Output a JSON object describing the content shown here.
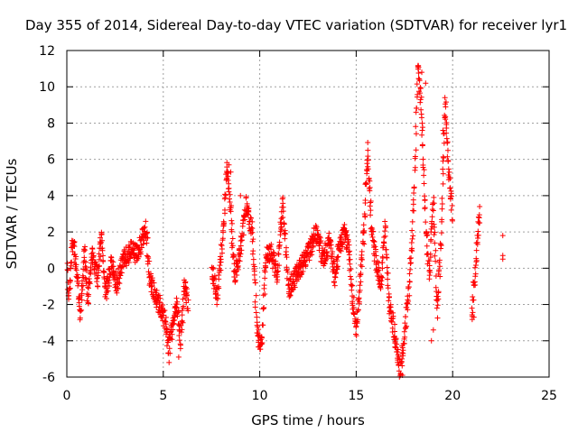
{
  "chart_data": {
    "type": "scatter",
    "title": "Day 355 of 2014, Sidereal Day-to-day VTEC variation (SDTVAR) for receiver lyr1",
    "xlabel": "GPS time / hours",
    "ylabel": "SDTVAR / TECUs",
    "xlim": [
      0,
      25
    ],
    "ylim": [
      -6,
      12
    ],
    "x_ticks": [
      "0",
      "5",
      "10",
      "15",
      "20",
      "25"
    ],
    "y_ticks": [
      "-6",
      "-4",
      "-2",
      "0",
      "2",
      "4",
      "6",
      "8",
      "10",
      "12"
    ],
    "grid": true,
    "marker": "+",
    "color": "#ff0000",
    "anchors": [
      [
        0.0,
        0.5
      ],
      [
        0.1,
        -1.5
      ],
      [
        0.3,
        1.6
      ],
      [
        0.5,
        0.0
      ],
      [
        0.7,
        -2.5
      ],
      [
        0.9,
        1.0
      ],
      [
        1.1,
        -1.8
      ],
      [
        1.3,
        0.8
      ],
      [
        1.6,
        -0.5
      ],
      [
        1.8,
        1.8
      ],
      [
        2.0,
        -1.5
      ],
      [
        2.3,
        0.2
      ],
      [
        2.6,
        -1.0
      ],
      [
        2.8,
        0.2
      ],
      [
        3.0,
        0.5
      ],
      [
        3.3,
        1.0
      ],
      [
        3.6,
        0.8
      ],
      [
        3.9,
        1.5
      ],
      [
        4.1,
        2.2
      ],
      [
        4.3,
        -0.5
      ],
      [
        4.6,
        -1.5
      ],
      [
        4.9,
        -2.3
      ],
      [
        5.1,
        -3.0
      ],
      [
        5.3,
        -4.3
      ],
      [
        5.5,
        -3.0
      ],
      [
        5.7,
        -2.0
      ],
      [
        5.9,
        -4.0
      ],
      [
        6.1,
        -1.0
      ],
      [
        6.3,
        -2.0
      ],
      [
        7.5,
        0.0
      ],
      [
        7.8,
        -1.5
      ],
      [
        8.1,
        1.8
      ],
      [
        8.3,
        5.6
      ],
      [
        8.5,
        3.0
      ],
      [
        8.7,
        -0.5
      ],
      [
        9.0,
        1.0
      ],
      [
        9.3,
        3.5
      ],
      [
        9.6,
        2.0
      ],
      [
        9.9,
        -3.8
      ],
      [
        10.1,
        -4.2
      ],
      [
        10.3,
        0.5
      ],
      [
        10.6,
        1.0
      ],
      [
        10.9,
        -0.5
      ],
      [
        11.2,
        3.5
      ],
      [
        11.5,
        -1.2
      ],
      [
        12.1,
        0.0
      ],
      [
        12.6,
        1.0
      ],
      [
        12.9,
        2.0
      ],
      [
        13.3,
        0.5
      ],
      [
        13.6,
        1.5
      ],
      [
        13.9,
        -0.5
      ],
      [
        14.1,
        1.0
      ],
      [
        14.4,
        2.0
      ],
      [
        14.6,
        1.2
      ],
      [
        14.8,
        -1.5
      ],
      [
        15.0,
        -3.5
      ],
      [
        15.2,
        -0.5
      ],
      [
        15.4,
        2.0
      ],
      [
        15.6,
        6.5
      ],
      [
        15.8,
        2.0
      ],
      [
        16.0,
        0.5
      ],
      [
        16.3,
        -1.0
      ],
      [
        16.5,
        2.5
      ],
      [
        16.7,
        -2.0
      ],
      [
        16.9,
        -3.0
      ],
      [
        17.1,
        -4.5
      ],
      [
        17.3,
        -5.8
      ],
      [
        17.5,
        -3.5
      ],
      [
        17.7,
        -1.5
      ],
      [
        17.9,
        1.5
      ],
      [
        18.0,
        4.0
      ],
      [
        18.2,
        11.0
      ],
      [
        18.4,
        8.5
      ],
      [
        18.6,
        2.5
      ],
      [
        18.8,
        -0.5
      ],
      [
        19.0,
        3.8
      ],
      [
        19.2,
        -2.5
      ],
      [
        19.4,
        1.5
      ],
      [
        19.6,
        9.3
      ],
      [
        19.8,
        5.5
      ],
      [
        20.0,
        2.8
      ],
      [
        21.0,
        -2.4
      ],
      [
        21.4,
        3.0
      ],
      [
        22.6,
        1.2
      ]
    ],
    "isolated_points": [
      [
        5.3,
        -5.2
      ],
      [
        5.8,
        -4.9
      ],
      [
        17.4,
        -5.9
      ],
      [
        18.2,
        11.1
      ],
      [
        18.4,
        10.8
      ],
      [
        18.6,
        10.2
      ],
      [
        19.6,
        9.4
      ],
      [
        19.5,
        7.6
      ],
      [
        19.5,
        5.9
      ],
      [
        21.4,
        3.4
      ],
      [
        21.4,
        2.5
      ],
      [
        22.6,
        1.8
      ],
      [
        22.6,
        0.7
      ],
      [
        22.6,
        0.5
      ],
      [
        21.0,
        -2.2
      ],
      [
        21.1,
        -2.7
      ],
      [
        19.0,
        -3.4
      ],
      [
        18.9,
        -4.0
      ],
      [
        15.6,
        5.6
      ],
      [
        15.7,
        4.8
      ],
      [
        8.4,
        5.7
      ],
      [
        8.5,
        5.3
      ],
      [
        9.0,
        4.0
      ],
      [
        11.2,
        3.9
      ]
    ]
  }
}
